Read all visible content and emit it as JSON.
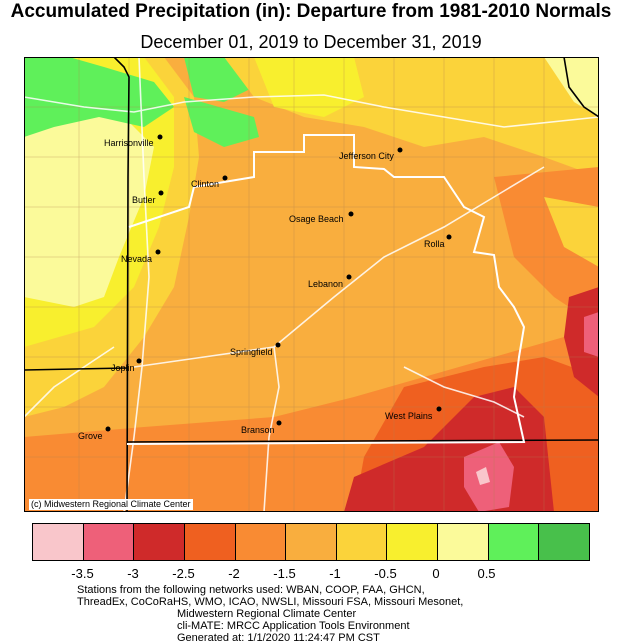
{
  "header": {
    "title": "Accumulated Precipitation (in): Departure from 1981-2010 Normals",
    "subtitle": "December 01, 2019 to December 31, 2019"
  },
  "map": {
    "credit": "(c) Midwestern Regional Climate Center",
    "cities": [
      {
        "name": "Harrisonville"
      },
      {
        "name": "Jefferson City"
      },
      {
        "name": "Clinton"
      },
      {
        "name": "Butler"
      },
      {
        "name": "Osage Beach"
      },
      {
        "name": "Rolla"
      },
      {
        "name": "Nevada"
      },
      {
        "name": "Lebanon"
      },
      {
        "name": "Springfield"
      },
      {
        "name": "Joplin"
      },
      {
        "name": "West Plains"
      },
      {
        "name": "Branson"
      },
      {
        "name": "Grove"
      }
    ]
  },
  "legend": {
    "colors": [
      "#f9c6cb",
      "#ee6079",
      "#cf2a2a",
      "#ef6020",
      "#f98b33",
      "#f9ae3e",
      "#fbd33a",
      "#f8ef2e",
      "#fbfa9a",
      "#5ff05a",
      "#48c04b"
    ],
    "tick_labels": [
      "-3.5",
      "-3",
      "-2.5",
      "-2",
      "-1.5",
      "-1",
      "-0.5",
      "0",
      "0.5"
    ]
  },
  "footer": {
    "lines": [
      "Stations from the following networks used: WBAN, COOP, FAA, GHCN,",
      "ThreadEx, CoCoRaHS, WMO, ICAO, NWSLI, Missouri FSA, Missouri Mesonet,",
      "Midwestern Regional Climate Center",
      "cli-MATE: MRCC Application Tools Environment",
      "Generated at: 1/1/2020 11:24:47 PM CST"
    ]
  }
}
